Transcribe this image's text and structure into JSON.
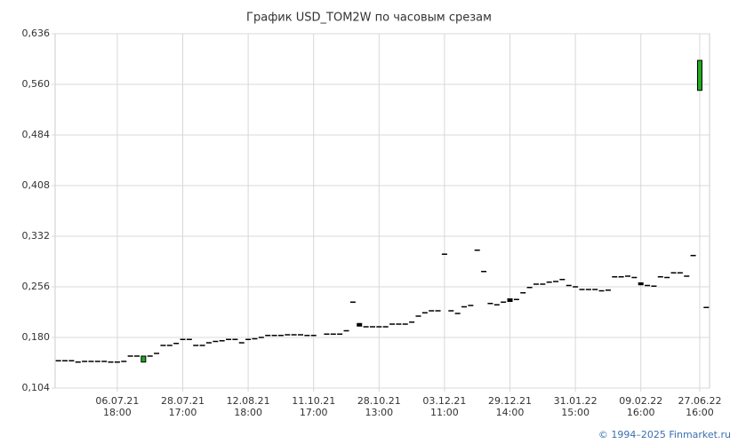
{
  "chart_data": {
    "type": "candlestick",
    "title": "График USD_TOM2W по часовым срезам",
    "footer": "© 1994–2025 Finmarket.ru",
    "categories": [
      null,
      null,
      null,
      null,
      null,
      null,
      null,
      null,
      null,
      "06.07.21 18:00",
      null,
      null,
      null,
      null,
      null,
      null,
      null,
      null,
      null,
      "28.07.21 17:00",
      null,
      null,
      null,
      null,
      null,
      null,
      null,
      null,
      null,
      "12.08.21 18:00",
      null,
      null,
      null,
      null,
      null,
      null,
      null,
      null,
      null,
      "11.10.21 17:00",
      null,
      null,
      null,
      null,
      null,
      null,
      null,
      null,
      null,
      "28.10.21 13:00",
      null,
      null,
      null,
      null,
      null,
      null,
      null,
      null,
      null,
      "03.12.21 11:00",
      null,
      null,
      null,
      null,
      null,
      null,
      null,
      null,
      null,
      "29.12.21 14:00",
      null,
      null,
      null,
      null,
      null,
      null,
      null,
      null,
      null,
      "31.01.22 15:00",
      null,
      null,
      null,
      null,
      null,
      null,
      null,
      null,
      null,
      "09.02.22 16:00",
      null,
      null,
      null,
      null,
      null,
      null,
      null,
      null,
      "27.06.22 16:00",
      null
    ],
    "open": [
      0.145,
      0.145,
      0.145,
      0.143,
      0.144,
      0.144,
      0.144,
      0.144,
      0.143,
      0.143,
      0.144,
      0.152,
      0.152,
      0.143,
      0.152,
      0.156,
      0.168,
      0.168,
      0.171,
      0.177,
      0.177,
      0.168,
      0.168,
      0.172,
      0.174,
      0.175,
      0.177,
      0.177,
      0.172,
      0.177,
      0.178,
      0.18,
      0.183,
      0.183,
      0.183,
      0.184,
      0.184,
      0.184,
      0.183,
      0.183,
      null,
      0.185,
      0.185,
      0.185,
      0.19,
      0.233,
      0.201,
      0.196,
      0.196,
      0.196,
      0.196,
      0.2,
      0.2,
      0.2,
      0.203,
      0.212,
      0.217,
      0.22,
      0.22,
      0.305,
      0.22,
      0.216,
      0.226,
      0.228,
      0.311,
      0.279,
      0.231,
      0.229,
      0.233,
      0.238,
      0.237,
      0.247,
      0.255,
      0.26,
      0.26,
      0.263,
      0.264,
      0.267,
      0.258,
      0.256,
      0.252,
      0.252,
      0.252,
      0.25,
      0.251,
      0.271,
      0.271,
      0.272,
      0.27,
      0.262,
      0.258,
      0.257,
      0.271,
      0.27,
      0.277,
      0.277,
      0.272,
      0.303,
      0.551,
      0.225
    ],
    "close": [
      0.145,
      0.145,
      0.145,
      0.143,
      0.144,
      0.144,
      0.144,
      0.144,
      0.143,
      0.143,
      0.144,
      0.152,
      0.152,
      0.152,
      0.152,
      0.156,
      0.168,
      0.168,
      0.171,
      0.177,
      0.177,
      0.168,
      0.168,
      0.172,
      0.174,
      0.175,
      0.177,
      0.177,
      0.172,
      0.177,
      0.178,
      0.18,
      0.183,
      0.183,
      0.183,
      0.184,
      0.184,
      0.184,
      0.183,
      0.183,
      null,
      0.185,
      0.185,
      0.185,
      0.19,
      0.233,
      0.197,
      0.196,
      0.196,
      0.196,
      0.196,
      0.2,
      0.2,
      0.2,
      0.203,
      0.212,
      0.217,
      0.22,
      0.22,
      0.305,
      0.22,
      0.216,
      0.226,
      0.228,
      0.311,
      0.279,
      0.231,
      0.229,
      0.233,
      0.234,
      0.237,
      0.247,
      0.255,
      0.26,
      0.26,
      0.263,
      0.264,
      0.267,
      0.258,
      0.256,
      0.252,
      0.252,
      0.252,
      0.25,
      0.251,
      0.271,
      0.271,
      0.272,
      0.27,
      0.259,
      0.258,
      0.257,
      0.271,
      0.27,
      0.277,
      0.277,
      0.272,
      0.303,
      0.596,
      0.225
    ],
    "up_color": "#22aa22",
    "down_color": "#000000",
    "ylim": [
      0.104,
      0.636
    ],
    "yticks": [
      {
        "value": 0.104,
        "label": "0,104"
      },
      {
        "value": 0.18,
        "label": "0,180"
      },
      {
        "value": 0.256,
        "label": "0,256"
      },
      {
        "value": 0.332,
        "label": "0,332"
      },
      {
        "value": 0.408,
        "label": "0,408"
      },
      {
        "value": 0.484,
        "label": "0,484"
      },
      {
        "value": 0.56,
        "label": "0,560"
      },
      {
        "value": 0.636,
        "label": "0,636"
      }
    ],
    "grid": true
  }
}
